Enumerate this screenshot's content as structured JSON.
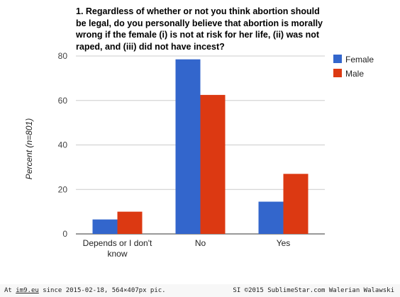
{
  "chart_data": {
    "type": "bar",
    "title": "1. Regardless of whether or not you think abortion should be legal, do you personally believe that abortion is morally wrong if the female (i) is not at risk for her life, (ii) was not raped, and (iii) did not have incest?",
    "ylabel": "Percent (n=801)",
    "xlabel": "",
    "categories": [
      "Depends or I don't know",
      "No",
      "Yes"
    ],
    "category_lines": [
      [
        "Depends or I don't",
        "know"
      ],
      [
        "No"
      ],
      [
        "Yes"
      ]
    ],
    "series": [
      {
        "name": "Female",
        "color": "#3366cc",
        "values": [
          6.5,
          78.5,
          14.5
        ]
      },
      {
        "name": "Male",
        "color": "#dc3912",
        "values": [
          10,
          62.5,
          27
        ]
      }
    ],
    "ylim": [
      0,
      80
    ],
    "yticks": [
      0,
      20,
      40,
      60,
      80
    ],
    "grid": true,
    "legend": "right"
  },
  "footer": {
    "left_prefix": "At ",
    "left_site": "im9.eu",
    "left_suffix": " since 2015-02-18, 564×407px pic.",
    "right": "SI ©2015 SublimeStar.com Walerian Walawski"
  }
}
